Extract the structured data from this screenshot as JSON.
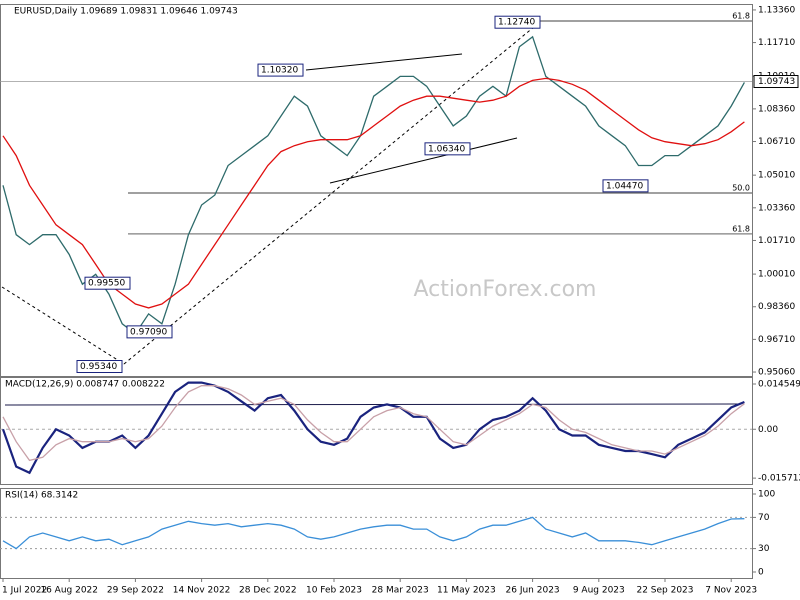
{
  "chart_data": [
    {
      "type": "line",
      "title": "EURUSD,Daily  1.09689 1.09831 1.09646 1.09743",
      "watermark": "ActionForex.com",
      "ylim": [
        0.9486,
        1.1366
      ],
      "yticks": [
        {
          "value": 1.1336,
          "label": "1.13360"
        },
        {
          "value": 1.1171,
          "label": "1.11710"
        },
        {
          "value": 1.1001,
          "label": "1.10010"
        },
        {
          "value": 1.0836,
          "label": "1.08360"
        },
        {
          "value": 1.0671,
          "label": "1.06710"
        },
        {
          "value": 1.0501,
          "label": "1.05010"
        },
        {
          "value": 1.0336,
          "label": "1.03360"
        },
        {
          "value": 1.0171,
          "label": "1.01710"
        },
        {
          "value": 1.0001,
          "label": "1.00010"
        },
        {
          "value": 0.9836,
          "label": "0.98360"
        },
        {
          "value": 0.9671,
          "label": "0.96710"
        },
        {
          "value": 0.9506,
          "label": "0.95060"
        }
      ],
      "last_price": {
        "value": 1.09743,
        "label": "1.09743"
      },
      "series": [
        {
          "name": "EURUSD",
          "color": "#2e6b6b",
          "values": [
            1.045,
            1.02,
            1.015,
            1.02,
            1.02,
            1.01,
            0.995,
            1.0,
            0.99,
            0.975,
            0.97,
            0.98,
            0.975,
            0.995,
            1.02,
            1.035,
            1.04,
            1.055,
            1.06,
            1.065,
            1.07,
            1.08,
            1.09,
            1.085,
            1.07,
            1.065,
            1.06,
            1.07,
            1.09,
            1.095,
            1.1,
            1.1,
            1.095,
            1.085,
            1.075,
            1.08,
            1.09,
            1.095,
            1.09,
            1.115,
            1.12,
            1.1,
            1.095,
            1.09,
            1.085,
            1.075,
            1.07,
            1.065,
            1.055,
            1.055,
            1.06,
            1.06,
            1.065,
            1.07,
            1.075,
            1.085,
            1.097
          ]
        },
        {
          "name": "MA",
          "color": "#e01010",
          "values": [
            1.07,
            1.06,
            1.045,
            1.035,
            1.025,
            1.02,
            1.015,
            1.005,
            0.995,
            0.99,
            0.985,
            0.983,
            0.985,
            0.99,
            0.995,
            1.005,
            1.015,
            1.025,
            1.035,
            1.045,
            1.055,
            1.062,
            1.065,
            1.067,
            1.068,
            1.068,
            1.068,
            1.07,
            1.075,
            1.08,
            1.085,
            1.088,
            1.09,
            1.09,
            1.089,
            1.088,
            1.087,
            1.088,
            1.09,
            1.095,
            1.098,
            1.099,
            1.098,
            1.096,
            1.093,
            1.088,
            1.083,
            1.078,
            1.073,
            1.069,
            1.067,
            1.066,
            1.065,
            1.066,
            1.068,
            1.072,
            1.077
          ]
        }
      ],
      "annotations": [
        {
          "value": 1.1274,
          "label": "1.12740"
        },
        {
          "value": 1.1032,
          "label": "1.10320"
        },
        {
          "value": 1.0634,
          "label": "1.06340"
        },
        {
          "value": 1.0447,
          "label": "1.04470"
        },
        {
          "value": 0.9955,
          "label": "0.99550"
        },
        {
          "value": 0.9709,
          "label": "0.97090"
        },
        {
          "value": 0.9534,
          "label": "0.95340"
        }
      ],
      "fib_levels": [
        {
          "value": 1.128,
          "label": "61.8"
        },
        {
          "value": 1.0411,
          "label": "50.0"
        },
        {
          "value": 1.0204,
          "label": "61.8"
        }
      ]
    },
    {
      "type": "line",
      "title": "MACD(12,26,9) 0.008747 0.008222",
      "ylim": [
        -0.0176,
        0.0168
      ],
      "yticks": [
        0.014549,
        {
          "value": 0,
          "label": "0.00"
        },
        -0.015712
      ],
      "series": [
        {
          "name": "MACD",
          "color": "#1a237e",
          "values": [
            0.0,
            -0.012,
            -0.014,
            -0.006,
            0.0,
            -0.002,
            -0.006,
            -0.004,
            -0.004,
            -0.002,
            -0.006,
            -0.002,
            0.005,
            0.012,
            0.015,
            0.015,
            0.014,
            0.012,
            0.009,
            0.006,
            0.01,
            0.011,
            0.006,
            0.0,
            -0.004,
            -0.005,
            -0.003,
            0.004,
            0.007,
            0.008,
            0.007,
            0.004,
            0.004,
            -0.003,
            -0.006,
            -0.005,
            0.0,
            0.003,
            0.004,
            0.006,
            0.01,
            0.006,
            0.0,
            -0.002,
            -0.002,
            -0.005,
            -0.006,
            -0.007,
            -0.007,
            -0.008,
            -0.009,
            -0.005,
            -0.003,
            -0.001,
            0.003,
            0.007,
            0.008747
          ]
        },
        {
          "name": "Signal",
          "color": "#c8a0a8",
          "values": [
            0.004,
            -0.004,
            -0.01,
            -0.009,
            -0.005,
            -0.003,
            -0.004,
            -0.004,
            -0.004,
            -0.003,
            -0.004,
            -0.003,
            0.001,
            0.007,
            0.012,
            0.014,
            0.014,
            0.013,
            0.011,
            0.008,
            0.009,
            0.01,
            0.008,
            0.003,
            -0.001,
            -0.004,
            -0.004,
            0.0,
            0.004,
            0.006,
            0.007,
            0.005,
            0.004,
            0.0,
            -0.004,
            -0.005,
            -0.002,
            0.001,
            0.003,
            0.005,
            0.008,
            0.007,
            0.003,
            0.0,
            -0.001,
            -0.003,
            -0.005,
            -0.006,
            -0.007,
            -0.007,
            -0.008,
            -0.006,
            -0.004,
            -0.002,
            0.001,
            0.005,
            0.008222
          ]
        }
      ]
    },
    {
      "type": "line",
      "title": "RSI(14) 68.3142",
      "ylim": [
        -7.7,
        107.7
      ],
      "yticks": [
        100,
        70,
        30,
        0
      ],
      "categories": [
        "1 Jul 2022",
        null,
        null,
        null,
        null,
        "16 Aug 2022",
        null,
        null,
        null,
        null,
        "29 Sep 2022",
        null,
        null,
        null,
        null,
        "14 Nov 2022",
        null,
        null,
        null,
        null,
        "28 Dec 2022",
        null,
        null,
        null,
        null,
        "10 Feb 2023",
        null,
        null,
        null,
        null,
        "28 Mar 2023",
        null,
        null,
        null,
        null,
        "11 May 2023",
        null,
        null,
        null,
        null,
        "26 Jun 2023",
        null,
        null,
        null,
        null,
        "9 Aug 2023",
        null,
        null,
        null,
        null,
        "22 Sep 2023",
        null,
        null,
        null,
        null,
        "7 Nov 2023",
        null
      ],
      "series": [
        {
          "name": "RSI",
          "color": "#3a8fd8",
          "values": [
            40,
            30,
            45,
            50,
            45,
            40,
            45,
            40,
            42,
            35,
            40,
            45,
            55,
            60,
            65,
            62,
            60,
            62,
            58,
            60,
            62,
            60,
            55,
            45,
            42,
            45,
            50,
            55,
            58,
            60,
            60,
            55,
            55,
            45,
            40,
            45,
            55,
            60,
            60,
            65,
            70,
            55,
            50,
            45,
            50,
            40,
            40,
            40,
            38,
            35,
            40,
            45,
            50,
            55,
            62,
            68,
            68.3142
          ]
        }
      ]
    }
  ]
}
